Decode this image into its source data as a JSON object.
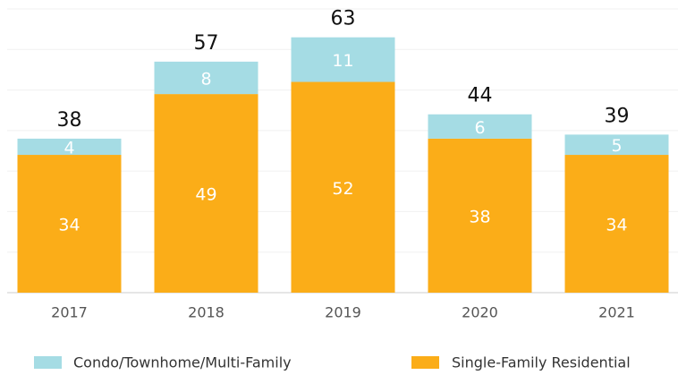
{
  "chart_data": {
    "type": "stacked_bar",
    "categories": [
      "2017",
      "2018",
      "2019",
      "2020",
      "2021"
    ],
    "series": [
      {
        "name": "Single-Family Residential",
        "color": "#fbad18",
        "values": [
          34,
          49,
          52,
          38,
          34
        ]
      },
      {
        "name": "Condo/Townhome/Multi-Family",
        "color": "#a5dce4",
        "values": [
          4,
          8,
          11,
          6,
          5
        ]
      }
    ],
    "totals": [
      38,
      57,
      63,
      44,
      39
    ],
    "ylim": [
      0,
      70
    ],
    "yticks": [
      0,
      10,
      20,
      30,
      40,
      50,
      60,
      70
    ],
    "grid": true
  }
}
